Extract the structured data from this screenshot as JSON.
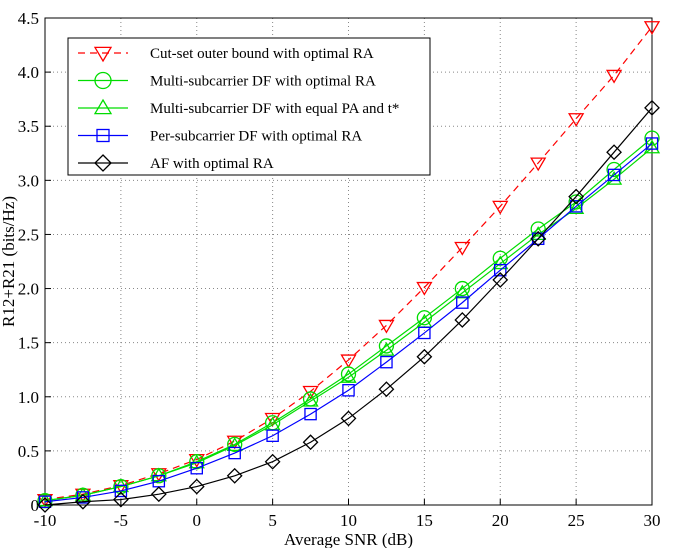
{
  "chart_data": {
    "type": "line",
    "x_label": "Average SNR (dB)",
    "y_label": "R12+R21 (bits/Hz)",
    "x": [
      -10,
      -7.5,
      -5,
      -2.5,
      0,
      2.5,
      5,
      7.5,
      10,
      12.5,
      15,
      17.5,
      20,
      22.5,
      25,
      27.5,
      30
    ],
    "series": [
      {
        "name": "Cut-set outer bound with optimal RA",
        "color": "#ff0000",
        "dash": true,
        "marker": "triangle-down",
        "values": [
          0.05,
          0.1,
          0.18,
          0.29,
          0.42,
          0.59,
          0.8,
          1.05,
          1.34,
          1.66,
          2.01,
          2.38,
          2.76,
          3.16,
          3.57,
          3.97,
          4.42
        ]
      },
      {
        "name": "Multi-subcarrier DF with optimal RA",
        "color": "#00dd00",
        "dash": false,
        "marker": "circle",
        "values": [
          0.04,
          0.09,
          0.17,
          0.27,
          0.4,
          0.56,
          0.76,
          0.98,
          1.21,
          1.47,
          1.73,
          2.0,
          2.28,
          2.55,
          2.8,
          3.1,
          3.39
        ]
      },
      {
        "name": "Multi-subcarrier DF with equal PA and t*",
        "color": "#00dd00",
        "dash": false,
        "marker": "triangle-up",
        "values": [
          0.04,
          0.09,
          0.17,
          0.27,
          0.39,
          0.55,
          0.74,
          0.96,
          1.18,
          1.43,
          1.69,
          1.96,
          2.23,
          2.5,
          2.74,
          3.01,
          3.3
        ]
      },
      {
        "name": "Per-subcarrier DF with optimal RA",
        "color": "#0000ff",
        "dash": false,
        "marker": "square",
        "values": [
          0.03,
          0.07,
          0.13,
          0.22,
          0.34,
          0.48,
          0.64,
          0.84,
          1.06,
          1.32,
          1.59,
          1.87,
          2.17,
          2.46,
          2.76,
          3.05,
          3.34
        ]
      },
      {
        "name": "AF with optimal RA",
        "color": "#000000",
        "dash": false,
        "marker": "diamond",
        "values": [
          0.0,
          0.03,
          0.05,
          0.1,
          0.17,
          0.27,
          0.4,
          0.58,
          0.8,
          1.07,
          1.37,
          1.71,
          2.08,
          2.46,
          2.85,
          3.26,
          3.67
        ]
      }
    ],
    "xlim": [
      -10,
      30
    ],
    "xticks": [
      -10,
      -5,
      0,
      5,
      10,
      15,
      20,
      25,
      30
    ],
    "ylim": [
      0,
      4.5
    ],
    "yticks": [
      0,
      0.5,
      {
        "value": 1,
        "label": "1.0"
      },
      1.5,
      {
        "value": 2,
        "label": "2.0"
      },
      2.5,
      {
        "value": 3,
        "label": "3.0"
      },
      3.5,
      {
        "value": 4,
        "label": "4.0"
      },
      4.5
    ],
    "grid": true,
    "legend": "upper left"
  }
}
